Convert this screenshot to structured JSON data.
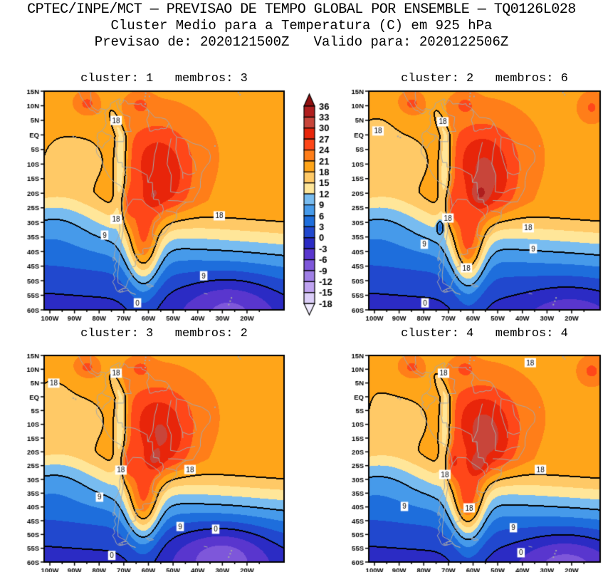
{
  "header": {
    "line1": "CPTEC/INPE/MCT — PREVISAO DE TEMPO GLOBAL POR ENSEMBLE — TQ0126L028",
    "line2": "Cluster Medio para a Temperatura (C) em 925 hPa",
    "line3": "Previsao de: 2020121500Z   Valido para: 2020122506Z"
  },
  "axes": {
    "lat_ticks": [
      "15N",
      "10N",
      "5N",
      "EQ",
      "5S",
      "10S",
      "15S",
      "20S",
      "25S",
      "30S",
      "35S",
      "40S",
      "45S",
      "50S",
      "55S",
      "60S"
    ],
    "lon_ticks": [
      "100W",
      "90W",
      "80W",
      "70W",
      "60W",
      "50W",
      "40W",
      "30W",
      "20W"
    ]
  },
  "colorbar": {
    "tick_values": [
      "36",
      "33",
      "30",
      "27",
      "24",
      "21",
      "18",
      "15",
      "12",
      "9",
      "6",
      "3",
      "0",
      "-3",
      "-6",
      "-9",
      "-12",
      "-15",
      "-18"
    ],
    "segment_colors_top_to_bottom": [
      "#AF1E1E",
      "#C8453A",
      "#E8250A",
      "#FF4719",
      "#FF7E19",
      "#FFA519",
      "#FFC966",
      "#FFE699",
      "#78BCF0",
      "#469AEA",
      "#1E6EDC",
      "#2148CE",
      "#2B2BC4",
      "#5936CE",
      "#7E57DA",
      "#9F7FE6",
      "#BFA3F0",
      "#DBCEF8"
    ],
    "arrow_top_color": "#8F1010",
    "arrow_bottom_color": "#EFEAFD"
  },
  "panels": [
    {
      "id": "cluster-1",
      "title": "cluster: 1   membros: 3",
      "contour_labels": [
        {
          "text": "18",
          "rx": 0.3,
          "ry": 0.134
        },
        {
          "text": "18",
          "rx": 0.3,
          "ry": 0.586
        },
        {
          "text": "18",
          "rx": 0.73,
          "ry": 0.57
        },
        {
          "text": "9",
          "rx": 0.252,
          "ry": 0.658
        },
        {
          "text": "9",
          "rx": 0.665,
          "ry": 0.844
        },
        {
          "text": "0",
          "rx": 0.389,
          "ry": 0.968
        }
      ]
    },
    {
      "id": "cluster-2",
      "title": "cluster: 2   membros: 6",
      "contour_labels": [
        {
          "text": "18",
          "rx": 0.32,
          "ry": 0.14
        },
        {
          "text": "18",
          "rx": 0.04,
          "ry": 0.182
        },
        {
          "text": "18",
          "rx": 0.342,
          "ry": 0.58
        },
        {
          "text": "18",
          "rx": 0.689,
          "ry": 0.625
        },
        {
          "text": "9",
          "rx": 0.24,
          "ry": 0.7
        },
        {
          "text": "9",
          "rx": 0.711,
          "ry": 0.72
        },
        {
          "text": "18",
          "rx": 0.422,
          "ry": 0.808
        },
        {
          "text": "0",
          "rx": 0.243,
          "ry": 0.968
        }
      ]
    },
    {
      "id": "cluster-3",
      "title": "cluster: 3   membros: 2",
      "contour_labels": [
        {
          "text": "18",
          "rx": 0.3,
          "ry": 0.086
        },
        {
          "text": "18",
          "rx": 0.04,
          "ry": 0.134
        },
        {
          "text": "18",
          "rx": 0.32,
          "ry": 0.555
        },
        {
          "text": "18",
          "rx": 0.608,
          "ry": 0.552
        },
        {
          "text": "9",
          "rx": 0.231,
          "ry": 0.686
        },
        {
          "text": "9",
          "rx": 0.567,
          "ry": 0.828
        },
        {
          "text": "0",
          "rx": 0.715,
          "ry": 0.841
        },
        {
          "text": "0",
          "rx": 0.282,
          "ry": 0.968
        }
      ]
    },
    {
      "id": "cluster-4",
      "title": "cluster: 4   membros: 4",
      "contour_labels": [
        {
          "text": "18",
          "rx": 0.698,
          "ry": 0.035
        },
        {
          "text": "18",
          "rx": 0.323,
          "ry": 0.086
        },
        {
          "text": "18",
          "rx": 0.329,
          "ry": 0.576
        },
        {
          "text": "18",
          "rx": 0.742,
          "ry": 0.552
        },
        {
          "text": "9",
          "rx": 0.154,
          "ry": 0.731
        },
        {
          "text": "18",
          "rx": 0.434,
          "ry": 0.738
        },
        {
          "text": "9",
          "rx": 0.625,
          "ry": 0.834
        },
        {
          "text": "0",
          "rx": 0.658,
          "ry": 0.955
        }
      ]
    }
  ],
  "chart_data": {
    "type": "heatmap",
    "subtype": "filled-contour-ensemble-cluster-maps",
    "title": "CPTEC/INPE/MCT — PREVISAO DE TEMPO GLOBAL POR ENSEMBLE — TQ0126L028",
    "subtitle": "Cluster Medio para a Temperatura (C) em 925 hPa",
    "init_label": "Previsao de: 2020121500Z",
    "valid_label": "Valido para: 2020122506Z",
    "variable": "Temperatura",
    "units": "C",
    "level": "925 hPa",
    "region": {
      "lon_ticks": [
        "100W",
        "90W",
        "80W",
        "70W",
        "60W",
        "50W",
        "40W",
        "30W",
        "20W"
      ],
      "lat_ticks": [
        "15N",
        "10N",
        "5N",
        "EQ",
        "5S",
        "10S",
        "15S",
        "20S",
        "25S",
        "30S",
        "35S",
        "40S",
        "45S",
        "50S",
        "55S",
        "60S"
      ]
    },
    "color_levels_c": [
      -18,
      -15,
      -12,
      -9,
      -6,
      -3,
      0,
      3,
      6,
      9,
      12,
      15,
      18,
      21,
      24,
      27,
      30,
      33,
      36
    ],
    "line_contour_levels_c": [
      0,
      9,
      18
    ],
    "legend_position": "between-top-panels",
    "panels": [
      {
        "cluster": 1,
        "membros": 3,
        "contour_line_labels": [
          "18",
          "18",
          "18",
          "9",
          "9",
          "0"
        ]
      },
      {
        "cluster": 2,
        "membros": 6,
        "contour_line_labels": [
          "18",
          "18",
          "18",
          "18",
          "9",
          "9",
          "18",
          "0"
        ]
      },
      {
        "cluster": 3,
        "membros": 2,
        "contour_line_labels": [
          "18",
          "18",
          "18",
          "18",
          "9",
          "9",
          "0",
          "0"
        ]
      },
      {
        "cluster": 4,
        "membros": 4,
        "contour_line_labels": [
          "18",
          "18",
          "18",
          "18",
          "9",
          "18",
          "9",
          "0"
        ]
      }
    ]
  }
}
